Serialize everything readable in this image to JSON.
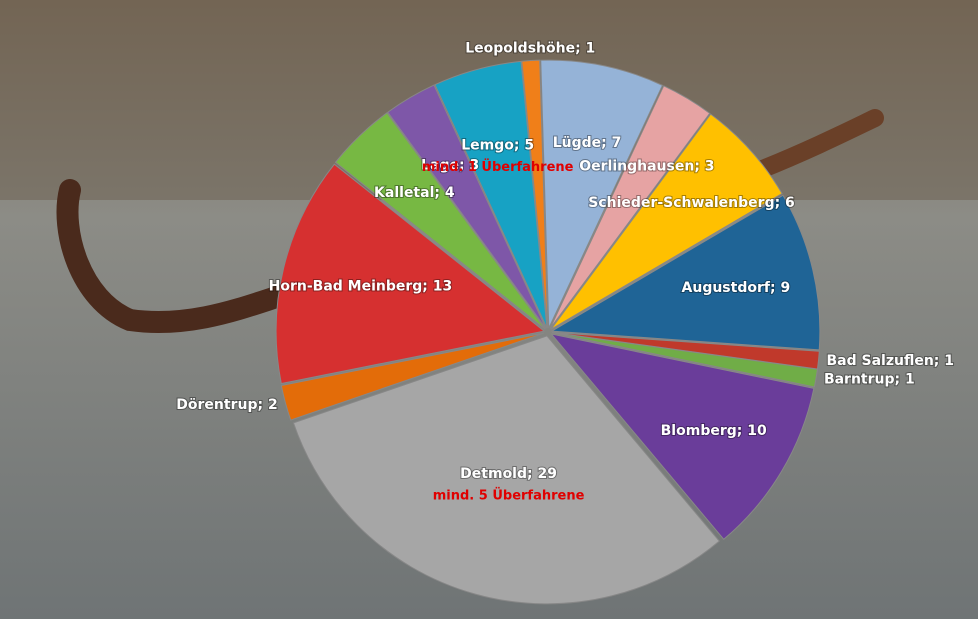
{
  "chart_data": {
    "type": "pie",
    "labels": [
      "Lügde; 7",
      "Oerlinghausen; 3",
      "Schieder-Schwalenberg; 6",
      "Augustdorf; 9",
      "Bad Salzuflen; 1",
      "Barntrup; 1",
      "Blomberg; 10",
      "Detmold; 29",
      "Dörentrup; 2",
      "Horn-Bad Meinberg; 13",
      "Kalletal; 4",
      "Lage; 3",
      "Lemgo; 5",
      "Leopoldshöhe; 1"
    ],
    "values": [
      7,
      3,
      6,
      9,
      1,
      1,
      10,
      29,
      2,
      13,
      4,
      3,
      5,
      1
    ],
    "colors": [
      "#95b3d7",
      "#e6a3a3",
      "#ffc000",
      "#1f6496",
      "#c0392b",
      "#70ad47",
      "#6a3d9a",
      "#a6a6a6",
      "#e36c09",
      "#d63030",
      "#77b843",
      "#7e57a8",
      "#17a2c4",
      "#f07f19"
    ],
    "notes": [
      null,
      null,
      null,
      null,
      null,
      null,
      null,
      "mind. 5 Überfahrene",
      null,
      null,
      null,
      null,
      "mind. 1 Überfahrene",
      null
    ]
  }
}
